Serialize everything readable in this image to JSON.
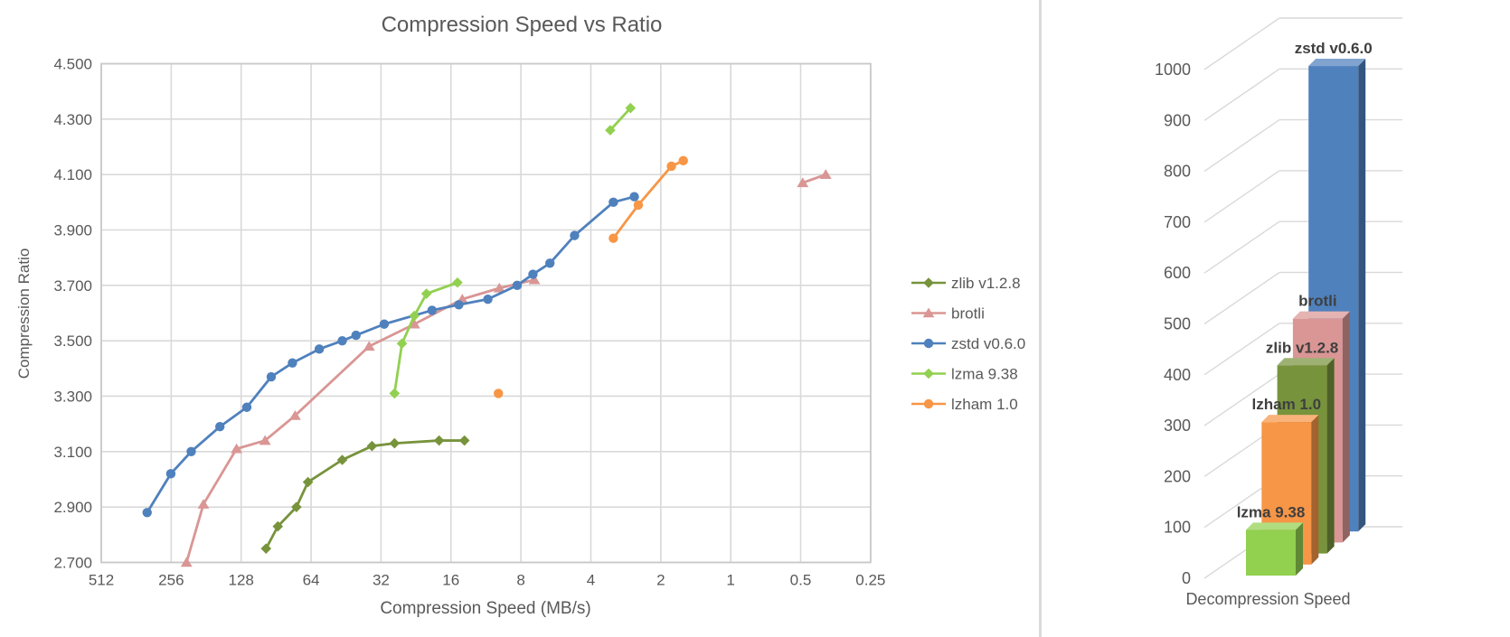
{
  "page": {
    "background": "#ffffff",
    "divider_color": "#dbdbdb"
  },
  "chart_data": [
    {
      "type": "scatter",
      "title": "Compression Speed vs Ratio",
      "xlabel": "Compression Speed (MB/s)",
      "ylabel": "Compression Ratio",
      "x_scale": "log2-reversed",
      "x_ticks": [
        "512",
        "256",
        "128",
        "64",
        "32",
        "16",
        "8",
        "4",
        "2",
        "1",
        "0.5",
        "0.25"
      ],
      "y_ticks": [
        "4.500",
        "4.300",
        "4.100",
        "3.900",
        "3.700",
        "3.500",
        "3.300",
        "3.100",
        "2.900",
        "2.700"
      ],
      "ylim": [
        2.7,
        4.5
      ],
      "xlim": [
        512,
        0.25
      ],
      "grid": true,
      "legend_position": "right",
      "axis_color": "#595959",
      "grid_color": "#d9d9d9",
      "series": [
        {
          "name": "zlib v1.2.8",
          "color": "#77933C",
          "marker": "diamond",
          "segments": [
            [
              [
                100,
                2.75
              ],
              [
                89,
                2.83
              ],
              [
                74,
                2.9
              ],
              [
                66,
                2.99
              ],
              [
                47,
                3.07
              ],
              [
                35,
                3.12
              ],
              [
                28,
                3.13
              ],
              [
                18,
                3.14
              ],
              [
                14,
                3.14
              ]
            ]
          ]
        },
        {
          "name": "brotli",
          "color": "#D99694",
          "marker": "triangle",
          "segments": [
            [
              [
                220,
                2.7
              ],
              [
                186,
                2.91
              ],
              [
                134,
                3.11
              ],
              [
                101,
                3.14
              ],
              [
                75,
                3.23
              ],
              [
                36,
                3.48
              ],
              [
                23,
                3.56
              ],
              [
                14.3,
                3.65
              ],
              [
                9.9,
                3.69
              ],
              [
                7,
                3.72
              ]
            ],
            [
              [
                0.49,
                4.07
              ],
              [
                0.39,
                4.1
              ]
            ]
          ]
        },
        {
          "name": "zstd v0.6.0",
          "color": "#4F81BD",
          "marker": "circle",
          "segments": [
            [
              [
                325,
                2.88
              ],
              [
                257,
                3.02
              ],
              [
                210,
                3.1
              ],
              [
                158,
                3.19
              ],
              [
                121,
                3.26
              ],
              [
                95,
                3.37
              ],
              [
                77,
                3.42
              ],
              [
                59,
                3.47
              ],
              [
                47,
                3.5
              ],
              [
                41,
                3.52
              ],
              [
                31,
                3.56
              ],
              [
                19.3,
                3.61
              ],
              [
                14.8,
                3.63
              ],
              [
                11.1,
                3.65
              ],
              [
                8.3,
                3.7
              ],
              [
                7.1,
                3.74
              ],
              [
                6,
                3.78
              ],
              [
                4.7,
                3.88
              ],
              [
                3.2,
                4.0
              ],
              [
                2.6,
                4.02
              ]
            ]
          ]
        },
        {
          "name": "lzma 9.38",
          "color": "#92D050",
          "marker": "diamond",
          "segments": [
            [
              [
                28,
                3.31
              ],
              [
                26,
                3.49
              ],
              [
                23,
                3.59
              ],
              [
                20.4,
                3.67
              ],
              [
                15,
                3.71
              ]
            ],
            [
              [
                3.3,
                4.26
              ],
              [
                2.7,
                4.34
              ]
            ]
          ]
        },
        {
          "name": "lzham 1.0",
          "color": "#F79646",
          "marker": "circle",
          "segments": [
            [
              [
                10,
                3.31
              ]
            ],
            [
              [
                3.2,
                3.87
              ],
              [
                2.5,
                3.99
              ],
              [
                1.8,
                4.13
              ],
              [
                1.6,
                4.15
              ]
            ]
          ]
        }
      ]
    },
    {
      "type": "bar3d",
      "xlabel": "Decompression Speed",
      "categories_front_to_back": [
        "lzma 9.38",
        "lzham 1.0",
        "zlib v1.2.8",
        "brotli",
        "zstd v0.6.0"
      ],
      "values": [
        90,
        280,
        370,
        440,
        915
      ],
      "colors": [
        "#92D050",
        "#F79646",
        "#77933C",
        "#D99694",
        "#4F81BD"
      ],
      "y_ticks": [
        0,
        100,
        200,
        300,
        400,
        500,
        600,
        700,
        800,
        900,
        1000
      ],
      "ylim": [
        0,
        1000
      ],
      "grid": true,
      "label_color": "#3f3f3f"
    }
  ]
}
